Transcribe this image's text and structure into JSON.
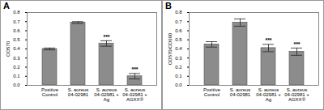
{
  "chart_data": [
    {
      "type": "bar",
      "title": "A",
      "categories": [
        "Positive Control",
        "S. aureus 04-02981",
        "S. aureus 04-02981 + Ag",
        "S. aureus 04-02981 + AGXX®"
      ],
      "values": [
        0.4,
        0.69,
        0.46,
        0.1
      ],
      "errors": [
        0.01,
        0.01,
        0.03,
        0.03
      ],
      "significance": [
        null,
        null,
        "***",
        "***"
      ],
      "ylabel": "OD570",
      "color": "#8c8c8c",
      "ylim": [
        0,
        0.8
      ],
      "yticks": [
        0,
        0.1,
        0.2,
        0.3,
        0.4,
        0.5,
        0.6,
        0.7,
        0.8
      ]
    },
    {
      "type": "bar",
      "title": "B",
      "categories": [
        "Positive Control",
        "S. aureus 04-02981",
        "S. aureus 04-02981 + Ag",
        "S. aureus 04-02981 + AGXX®"
      ],
      "values": [
        0.45,
        0.69,
        0.41,
        0.37
      ],
      "errors": [
        0.03,
        0.04,
        0.04,
        0.04
      ],
      "significance": [
        null,
        null,
        "***",
        "***"
      ],
      "ylabel": "OD570/OD600",
      "color": "#8c8c8c",
      "ylim": [
        0,
        0.8
      ],
      "yticks": [
        0,
        0.1,
        0.2,
        0.3,
        0.4,
        0.5,
        0.6,
        0.7,
        0.8
      ]
    }
  ]
}
